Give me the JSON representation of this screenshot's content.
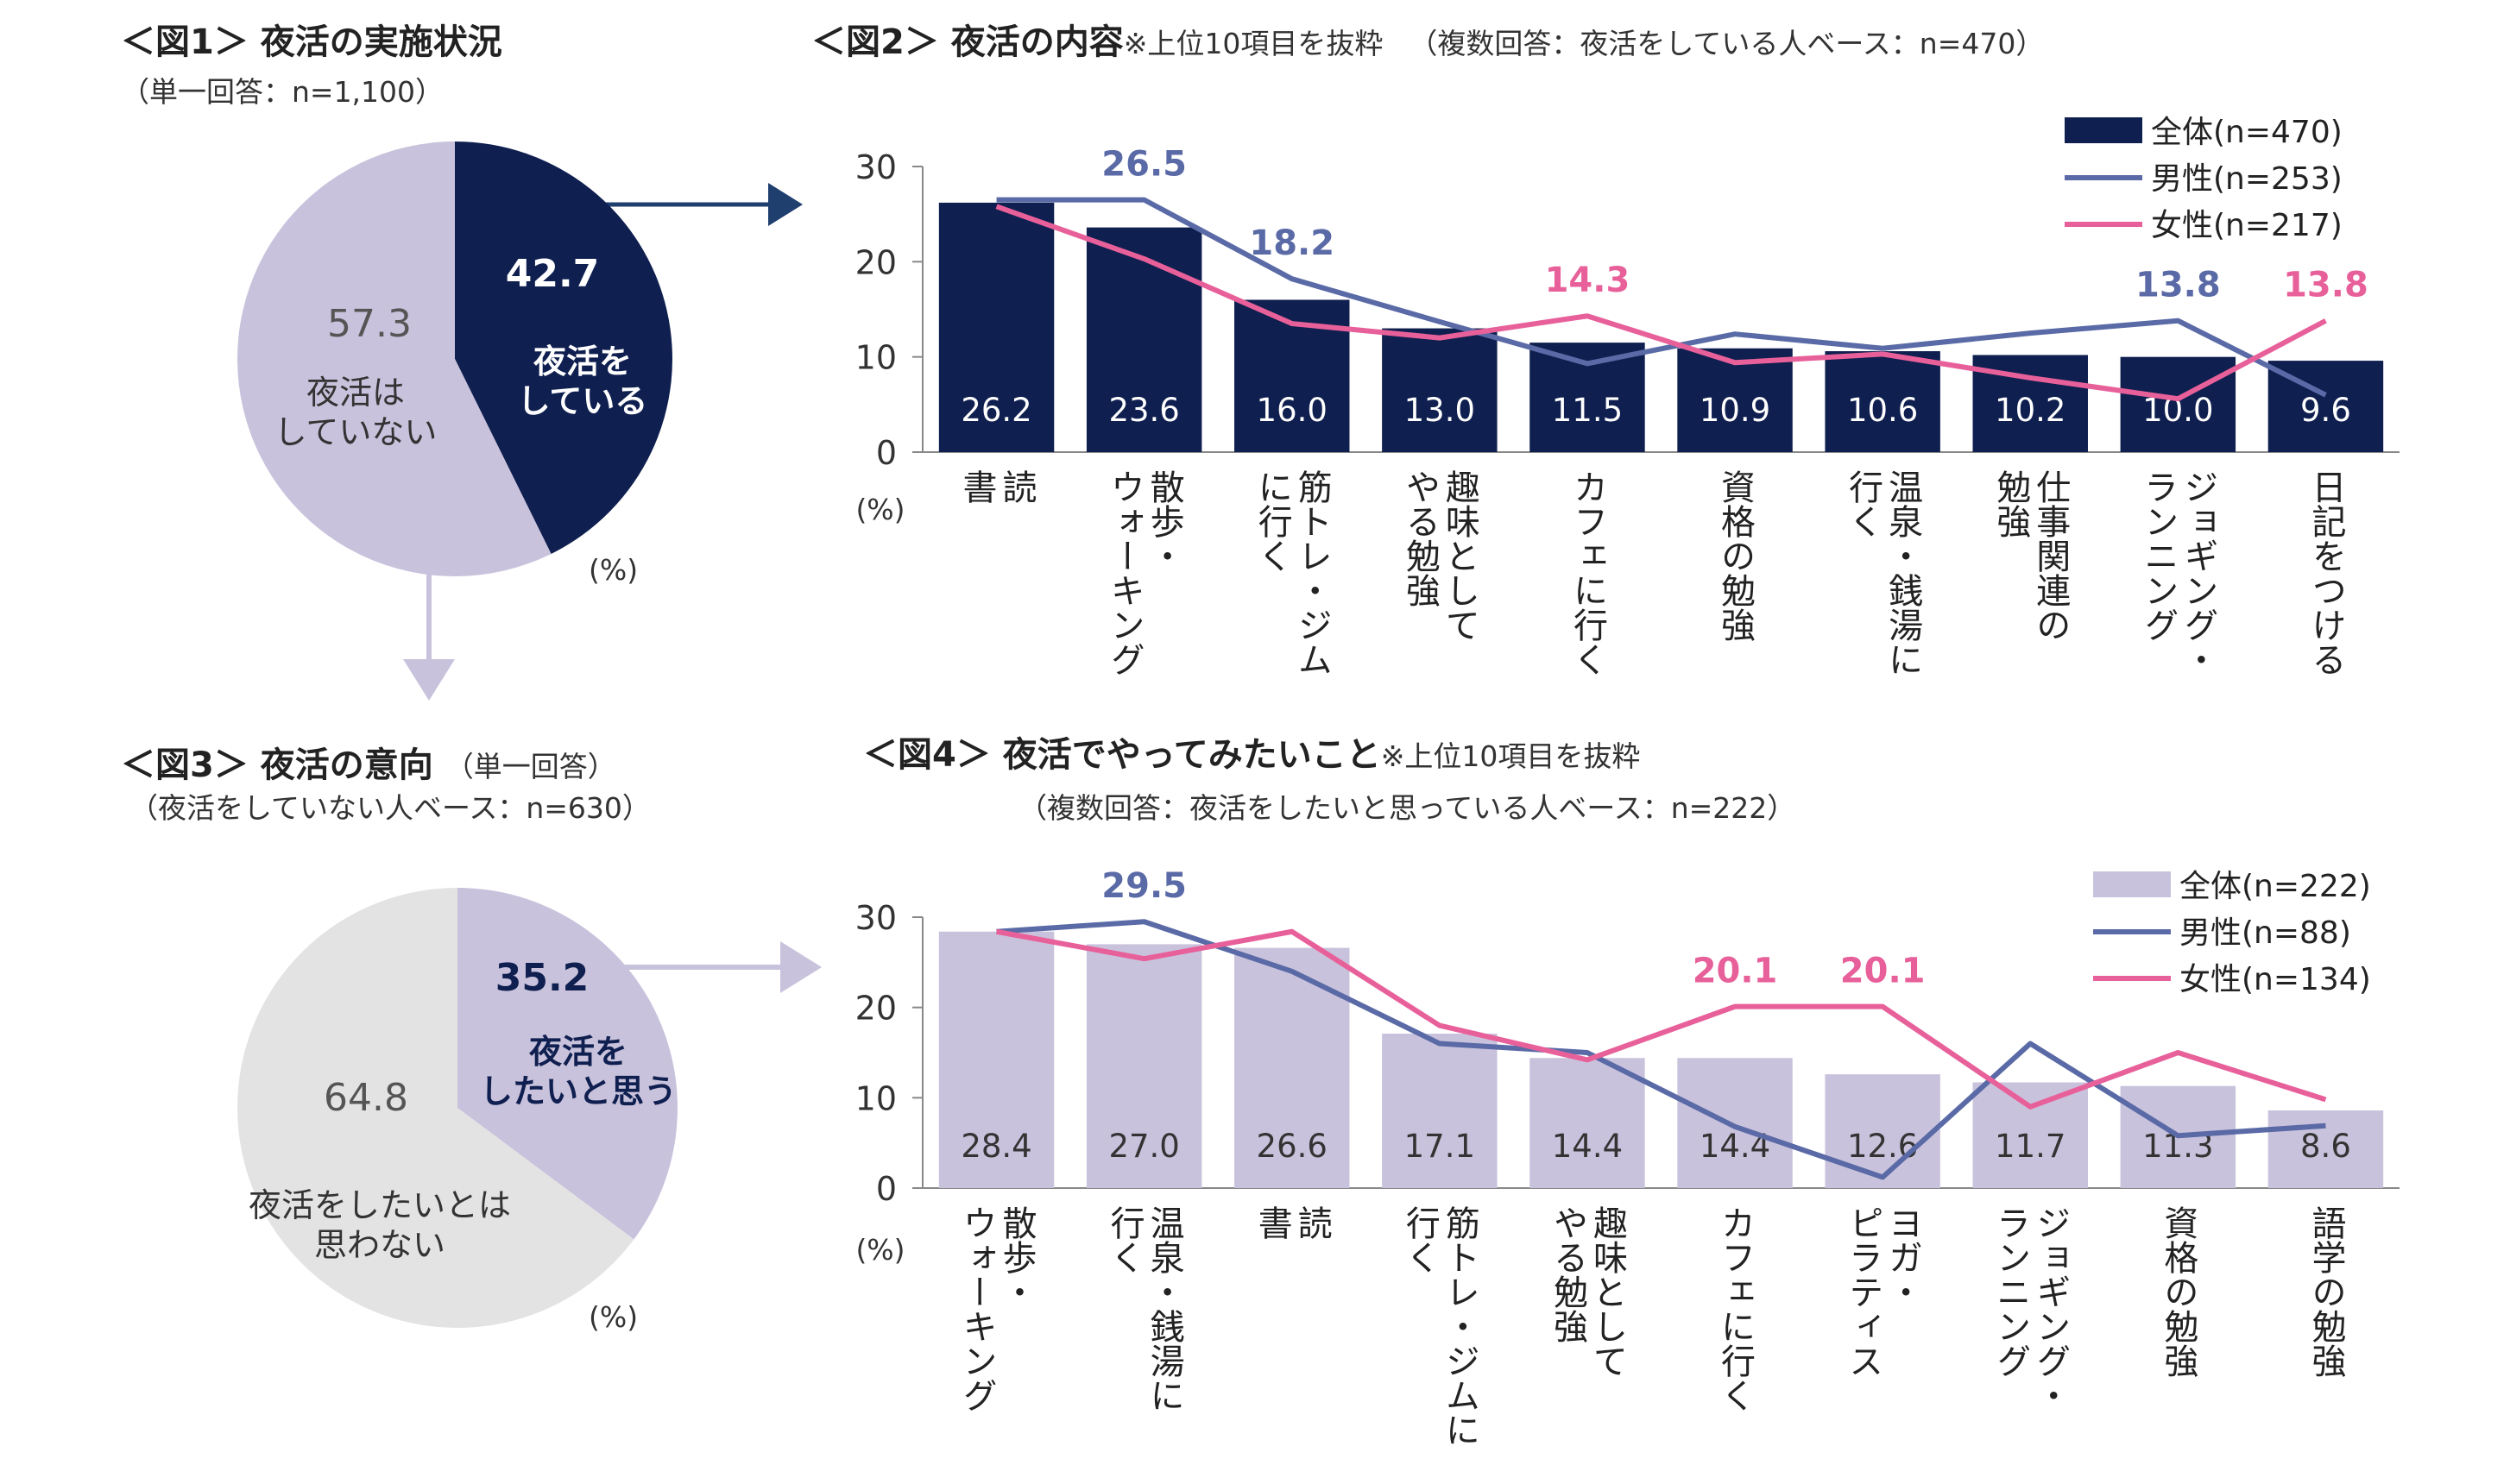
{
  "figures": {
    "fig1": {
      "title": "＜図1＞ 夜活の実施状況",
      "subtitle": "（単一回答：n=1,100）",
      "unit": "(%)"
    },
    "fig2": {
      "title": "＜図2＞ 夜活の内容",
      "note": "※上位10項目を抜粋",
      "subtitle": "（複数回答：夜活をしている人ベース：n=470）",
      "unit": "(%)"
    },
    "fig3": {
      "title": "＜図3＞ 夜活の意向",
      "title_note": "（単一回答）",
      "subtitle": "（夜活をしていない人ベース：n=630）",
      "unit": "(%)"
    },
    "fig4": {
      "title": "＜図4＞ 夜活でやってみたいこと",
      "note": "※上位10項目を抜粋",
      "subtitle": "（複数回答：夜活をしたいと思っている人ベース：n=222）",
      "unit": "(%)"
    }
  },
  "colors": {
    "navy": "#0f1f4f",
    "lavender": "#c9c2dc",
    "light_gray": "#e3e3e3",
    "male_line": "#5a6aa6",
    "female_line": "#e8609a",
    "axis": "#888888"
  },
  "chart_data": [
    {
      "id": "fig1",
      "type": "pie",
      "slices": [
        {
          "label": "夜活をしている",
          "value": 42.7,
          "label_lines": [
            "夜活を",
            "している"
          ],
          "color": "#0f1f4f"
        },
        {
          "label": "夜活はしていない",
          "value": 57.3,
          "label_lines": [
            "夜活は",
            "していない"
          ],
          "color": "#c9c2dc"
        }
      ]
    },
    {
      "id": "fig2",
      "type": "bar",
      "ylim": [
        0,
        30
      ],
      "yticks": [
        0,
        10,
        20,
        30
      ],
      "categories": [
        [
          "読",
          "書"
        ],
        [
          "散歩・",
          "ウォーキング"
        ],
        [
          "筋トレ・ジム",
          "に行く"
        ],
        [
          "趣味として",
          "やる勉強"
        ],
        [
          "カフェに行く"
        ],
        [
          "資格の勉強"
        ],
        [
          "温泉・銭湯に",
          "行く"
        ],
        [
          "仕事関連の",
          "勉強"
        ],
        [
          "ジョギング・",
          "ランニング"
        ],
        [
          "日記をつける"
        ]
      ],
      "series": [
        {
          "name": "全体(n=470)",
          "kind": "bar",
          "values": [
            26.2,
            23.6,
            16.0,
            13.0,
            11.5,
            10.9,
            10.6,
            10.2,
            10.0,
            9.6
          ]
        },
        {
          "name": "男性(n=253)",
          "kind": "line",
          "values": [
            26.5,
            26.5,
            18.2,
            13.7,
            9.3,
            12.4,
            10.9,
            12.5,
            13.8,
            6.0
          ]
        },
        {
          "name": "女性(n=217)",
          "kind": "line",
          "values": [
            25.8,
            20.3,
            13.5,
            12.0,
            14.3,
            9.4,
            10.3,
            7.8,
            5.6,
            13.8
          ]
        }
      ],
      "callouts": [
        {
          "series": 1,
          "index": 1,
          "text": "26.5"
        },
        {
          "series": 1,
          "index": 2,
          "text": "18.2"
        },
        {
          "series": 2,
          "index": 4,
          "text": "14.3"
        },
        {
          "series": 1,
          "index": 8,
          "text": "13.8"
        },
        {
          "series": 2,
          "index": 9,
          "text": "13.8"
        }
      ]
    },
    {
      "id": "fig3",
      "type": "pie",
      "slices": [
        {
          "label": "夜活をしたいと思う",
          "value": 35.2,
          "label_lines": [
            "夜活を",
            "したいと思う"
          ],
          "color": "#c9c2dc"
        },
        {
          "label": "夜活をしたいとは思わない",
          "value": 64.8,
          "label_lines": [
            "夜活をしたいとは",
            "思わない"
          ],
          "color": "#e3e3e3"
        }
      ]
    },
    {
      "id": "fig4",
      "type": "bar",
      "ylim": [
        0,
        30
      ],
      "yticks": [
        0,
        10,
        20,
        30
      ],
      "categories": [
        [
          "散歩・",
          "ウォーキング"
        ],
        [
          "温泉・銭湯に",
          "行く"
        ],
        [
          "読",
          "書"
        ],
        [
          "筋トレ・ジムに",
          "行く"
        ],
        [
          "趣味として",
          "やる勉強"
        ],
        [
          "カフェに行く"
        ],
        [
          "ヨガ・",
          "ピラティス"
        ],
        [
          "ジョギング・",
          "ランニング"
        ],
        [
          "資格の勉強"
        ],
        [
          "語学の勉強"
        ]
      ],
      "series": [
        {
          "name": "全体(n=222)",
          "kind": "bar",
          "values": [
            28.4,
            27.0,
            26.6,
            17.1,
            14.4,
            14.4,
            12.6,
            11.7,
            11.3,
            8.6
          ]
        },
        {
          "name": "男性(n=88)",
          "kind": "line",
          "values": [
            28.4,
            29.5,
            24.0,
            16.0,
            15.0,
            6.8,
            1.2,
            16.0,
            5.8,
            6.9
          ]
        },
        {
          "name": "女性(n=134)",
          "kind": "line",
          "values": [
            28.4,
            25.4,
            28.4,
            18.0,
            14.2,
            20.1,
            20.1,
            9.0,
            15.0,
            9.8
          ]
        }
      ],
      "callouts": [
        {
          "series": 1,
          "index": 1,
          "text": "29.5"
        },
        {
          "series": 2,
          "index": 5,
          "text": "20.1"
        },
        {
          "series": 2,
          "index": 6,
          "text": "20.1"
        }
      ]
    }
  ]
}
